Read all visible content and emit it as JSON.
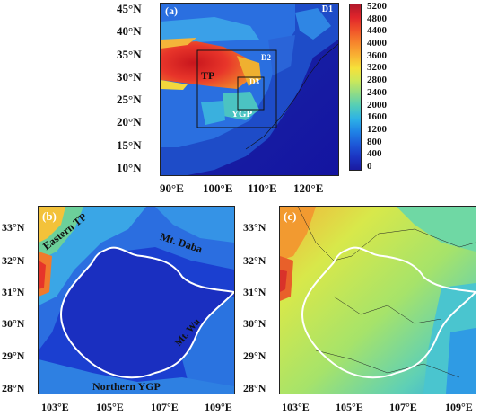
{
  "panel_a": {
    "label": "(a)",
    "domains": [
      "D1",
      "D2",
      "D3"
    ],
    "regions": {
      "tp": "TP",
      "ygp": "YGP"
    },
    "lat_ticks": [
      "45°N",
      "40°N",
      "35°N",
      "30°N",
      "25°N",
      "20°N",
      "15°N",
      "10°N"
    ],
    "lon_ticks": [
      "90°E",
      "100°E",
      "110°E",
      "120°E"
    ]
  },
  "colorbar": {
    "ticks": [
      "5200",
      "4800",
      "4400",
      "4000",
      "3600",
      "3200",
      "2800",
      "2400",
      "2000",
      "1600",
      "1200",
      "800",
      "400",
      "0"
    ],
    "colors": [
      "#b2182b",
      "#e0242b",
      "#f0522a",
      "#f7852c",
      "#f9b233",
      "#f6e13a",
      "#cbe85a",
      "#8fdc87",
      "#52cdb9",
      "#2db2e6",
      "#1f83e6",
      "#1d58d8",
      "#1b34c2",
      "#1a1aa0"
    ]
  },
  "panel_b": {
    "label": "(b)",
    "annotations": {
      "eastern_tp": "Eastern TP",
      "mt_daba": "Mt. Daba",
      "mt_wu": "Mt. Wu",
      "northern_ygp": "Northern YGP"
    },
    "lat_ticks": [
      "33°N",
      "32°N",
      "31°N",
      "30°N",
      "29°N",
      "28°N"
    ],
    "lon_ticks": [
      "103°E",
      "105°E",
      "107°E",
      "109°E"
    ]
  },
  "panel_c": {
    "label": "(c)",
    "lat_ticks": [
      "33°N",
      "32°N",
      "31°N",
      "30°N",
      "29°N",
      "28°N"
    ],
    "lon_ticks": [
      "103°E",
      "105°E",
      "107°E",
      "109°E"
    ]
  }
}
